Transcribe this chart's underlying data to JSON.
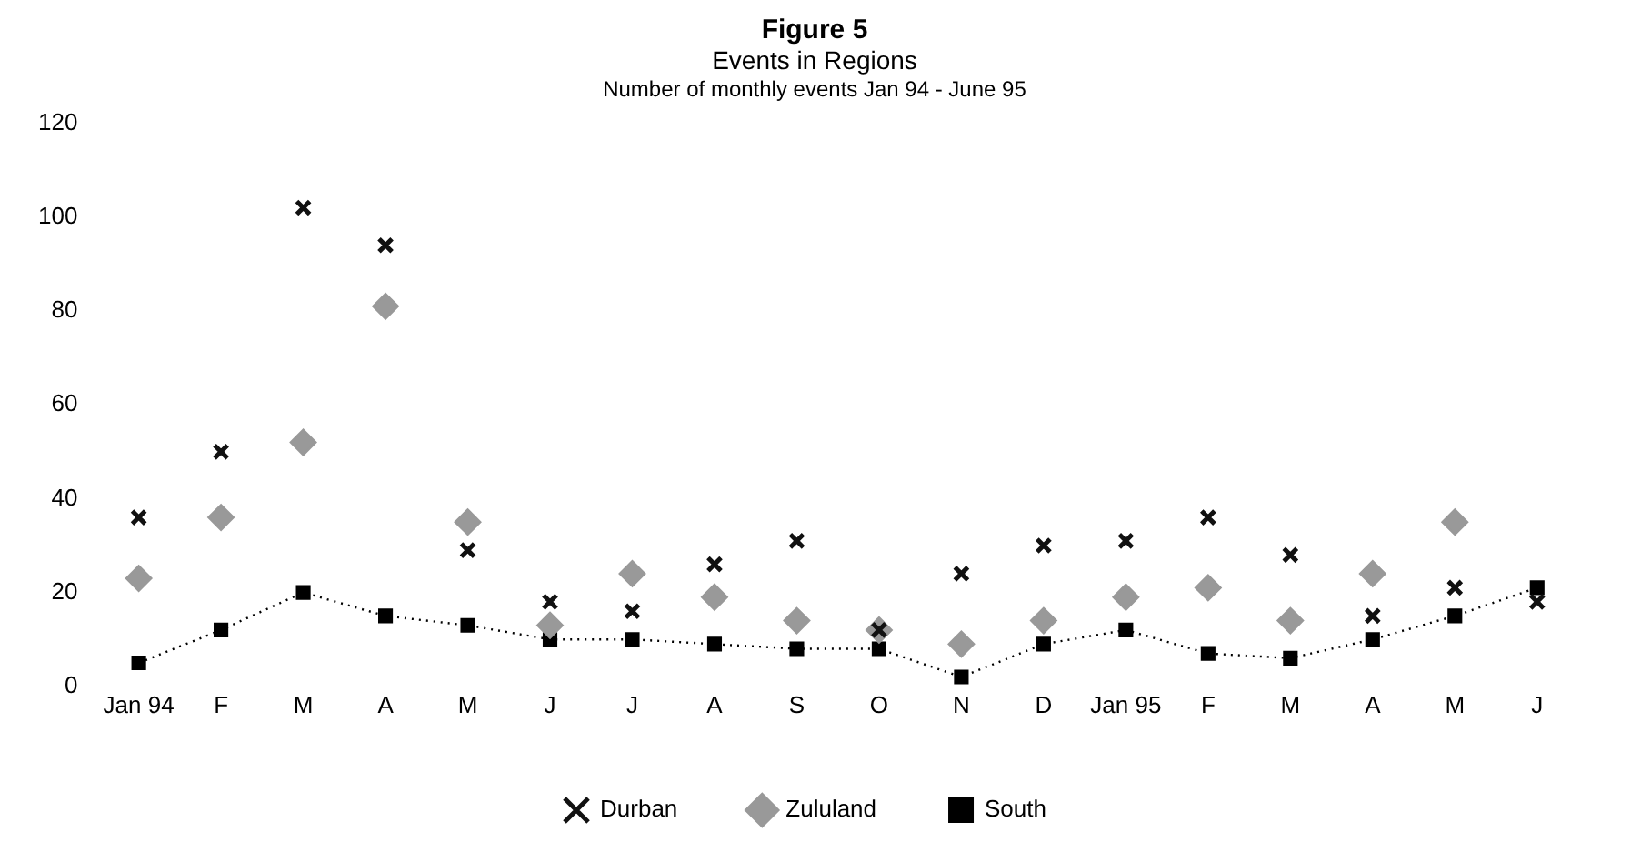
{
  "chart_data": {
    "type": "line",
    "title": "Figure 5",
    "subtitle": "Events in Regions",
    "annotations": [
      "Number of monthly events Jan 94 - June 95"
    ],
    "categories": [
      "Jan 94",
      "F",
      "M",
      "A",
      "M",
      "J",
      "J",
      "A",
      "S",
      "O",
      "N",
      "D",
      "Jan 95",
      "F",
      "M",
      "A",
      "M",
      "J"
    ],
    "ylim": [
      0,
      120
    ],
    "yticks": [
      0,
      20,
      40,
      60,
      80,
      100,
      120
    ],
    "grid": false,
    "legend": "bottom",
    "series": [
      {
        "name": "Durban",
        "type": "scatter",
        "marker": "cross",
        "color": "#111111",
        "values": [
          36,
          50,
          102,
          94,
          29,
          18,
          16,
          26,
          31,
          12,
          24,
          30,
          31,
          36,
          28,
          15,
          21,
          18
        ]
      },
      {
        "name": "Zululand",
        "type": "scatter",
        "marker": "diamond",
        "color": "#999999",
        "values": [
          23,
          36,
          52,
          81,
          35,
          13,
          24,
          19,
          14,
          12,
          9,
          14,
          19,
          21,
          14,
          24,
          35,
          null
        ]
      },
      {
        "name": "South",
        "type": "line",
        "marker": "square",
        "line_style": "dotted",
        "color": "#000000",
        "values": [
          5,
          12,
          20,
          15,
          13,
          10,
          10,
          9,
          8,
          8,
          2,
          9,
          12,
          7,
          6,
          10,
          15,
          21
        ]
      }
    ]
  }
}
